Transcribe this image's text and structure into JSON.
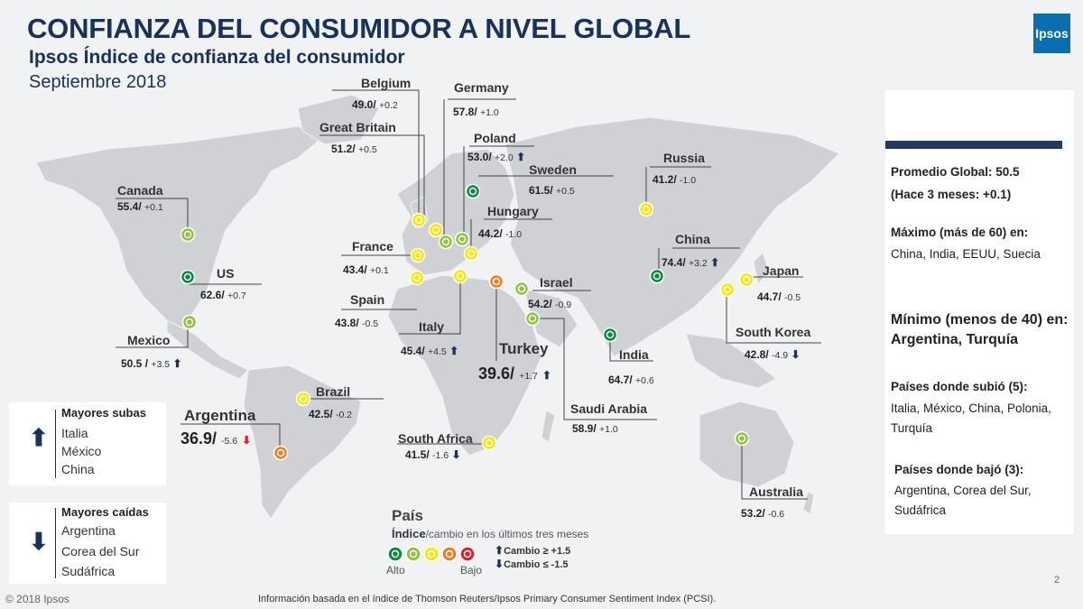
{
  "title": "CONFIANZA DEL CONSUMIDOR A NIVEL GLOBAL",
  "subtitle": "Ipsos Índice de confianza del consumidor",
  "date": "Septiembre 2018",
  "logo": "Ipsos",
  "colors": {
    "very_high": "#0b8a3a",
    "high": "#8cc63f",
    "mid": "#ffe600",
    "low": "#f07c22",
    "very_low": "#e21f26",
    "navy": "#17325c"
  },
  "countries": [
    {
      "name": "Belgium",
      "index": "49.0/",
      "change": "+0.2",
      "level": "mid"
    },
    {
      "name": "Germany",
      "index": "57.8/",
      "change": "+1.0",
      "level": "high"
    },
    {
      "name": "Great Britain",
      "index": "51.2/",
      "change": "+0.5",
      "level": "mid"
    },
    {
      "name": "Poland",
      "index": "53.0/",
      "change": "+2.0",
      "level": "high",
      "arrow": "up"
    },
    {
      "name": "Sweden",
      "index": "61.5/",
      "change": "+0.5",
      "level": "very_high"
    },
    {
      "name": "Russia",
      "index": "41.2/",
      "change": "-1.0",
      "level": "mid"
    },
    {
      "name": "Canada",
      "index": "55.4/",
      "change": "+0.1",
      "level": "high"
    },
    {
      "name": "Hungary",
      "index": "44.2/",
      "change": "-1.0",
      "level": "mid"
    },
    {
      "name": "France",
      "index": "43.4/",
      "change": "+0.1",
      "level": "mid"
    },
    {
      "name": "China",
      "index": "74.4/",
      "change": "+3.2",
      "level": "very_high",
      "arrow": "up"
    },
    {
      "name": "US",
      "index": "62.6/",
      "change": "+0.7",
      "level": "very_high"
    },
    {
      "name": "Japan",
      "index": "44.7/",
      "change": "-0.5",
      "level": "mid"
    },
    {
      "name": "Spain",
      "index": "43.8/",
      "change": "-0.5",
      "level": "mid"
    },
    {
      "name": "Israel",
      "index": "54.2/",
      "change": "-0.9",
      "level": "high"
    },
    {
      "name": "South Korea",
      "index": "42.8/",
      "change": "-4.9",
      "level": "mid",
      "arrow": "down"
    },
    {
      "name": "Mexico",
      "index": "50.5 /",
      "change": "+3.5",
      "level": "high",
      "arrow": "up"
    },
    {
      "name": "Italy",
      "index": "45.4/",
      "change": "+4.5",
      "level": "mid",
      "arrow": "up"
    },
    {
      "name": "Turkey",
      "index": "39.6/",
      "change": "+1.7",
      "level": "low",
      "arrow": "up"
    },
    {
      "name": "India",
      "index": "64.7/",
      "change": "+0.6",
      "level": "very_high"
    },
    {
      "name": "Brazil",
      "index": "42.5/",
      "change": "-0.2",
      "level": "mid"
    },
    {
      "name": "Saudi Arabia",
      "index": "58.9/",
      "change": "+1.0",
      "level": "high"
    },
    {
      "name": "Argentina",
      "index": "36.9/",
      "change": "-5.6",
      "level": "low",
      "arrow": "down_red"
    },
    {
      "name": "South Africa",
      "index": "41.5/",
      "change": "-1.6",
      "level": "mid",
      "arrow": "down"
    },
    {
      "name": "Australia",
      "index": "53.2/",
      "change": "-0.6",
      "level": "high"
    }
  ],
  "side": {
    "global": "Promedio Global: 50.5",
    "prev": "(Hace 3 meses: +0.1)",
    "max_title": "Máximo (más de 60) en:",
    "max_list": "China, India, EEUU, Suecia",
    "min_title": "Mínimo (menos de 40) en: Argentina, Turquía",
    "up_title": "Países donde subió (5):",
    "up_list": "Italia, México, China, Polonia, Turquía",
    "down_title": "Países donde bajó (3):",
    "down_list": "Argentina, Corea del Sur, Sudáfrica"
  },
  "boxes": {
    "up_title": "Mayores subas",
    "up_items": [
      "Italia",
      "México",
      "China"
    ],
    "down_title": "Mayores caídas",
    "down_items": [
      "Argentina",
      "Corea del Sur",
      "Sudáfrica"
    ]
  },
  "legend": {
    "title": "País",
    "sub_bold": "Índice",
    "sub": "/cambio en los últimos tres meses",
    "high": "Alto",
    "low": "Bajo",
    "rule_up": "Cambio  ≥ +1.5",
    "rule_down": "Cambio  ≤ -1.5"
  },
  "footer": {
    "copyright": "© 2018 Ipsos",
    "note": "Información basada en el índice de Thomson Reuters/Ipsos Primary Consumer Sentiment Index (PCSI).",
    "page": "2"
  }
}
